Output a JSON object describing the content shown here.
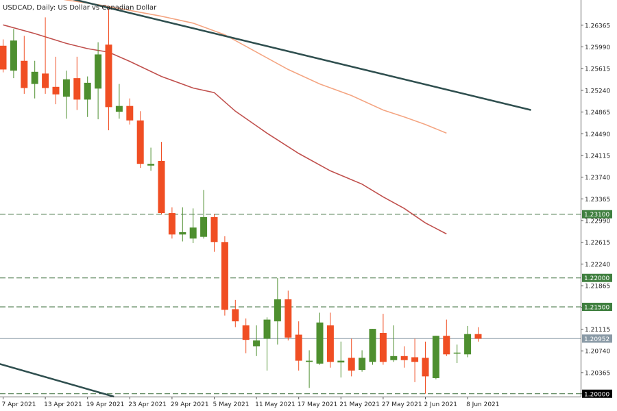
{
  "chart_data": {
    "type": "candlestick",
    "title": "USDCAD, Daily:  US Dollar vs Canadian Dollar",
    "ylim": [
      1.1995,
      1.268
    ],
    "y_ticks": [
      "1.26365",
      "1.25990",
      "1.25615",
      "1.25240",
      "1.24865",
      "1.24490",
      "1.24115",
      "1.23740",
      "1.23365",
      "1.22990",
      "1.22615",
      "1.22240",
      "1.21865",
      "1.21490",
      "1.21115",
      "1.20740",
      "1.20365",
      "1.20000"
    ],
    "x_labels": [
      "7 Apr 2021",
      "13 Apr 2021",
      "19 Apr 2021",
      "23 Apr 2021",
      "29 Apr 2021",
      "5 May 2021",
      "11 May 2021",
      "17 May 2021",
      "21 May 2021",
      "27 May 2021",
      "2 Jun 2021",
      "8 Jun 2021"
    ],
    "current_price": {
      "value": 1.20952,
      "label": "1.20952"
    },
    "horizontal_levels": [
      {
        "value": 1.231,
        "label": "1.23100"
      },
      {
        "value": 1.22,
        "label": "1.22000"
      },
      {
        "value": 1.215,
        "label": "1.21500"
      },
      {
        "value": 1.2,
        "label": "1.20000"
      }
    ],
    "candles": [
      {
        "o": 1.2601,
        "h": 1.2612,
        "l": 1.2555,
        "c": 1.256
      },
      {
        "o": 1.2558,
        "h": 1.263,
        "l": 1.2545,
        "c": 1.261
      },
      {
        "o": 1.2575,
        "h": 1.2618,
        "l": 1.2518,
        "c": 1.2528
      },
      {
        "o": 1.2535,
        "h": 1.2575,
        "l": 1.251,
        "c": 1.2556
      },
      {
        "o": 1.2553,
        "h": 1.265,
        "l": 1.2518,
        "c": 1.2528
      },
      {
        "o": 1.253,
        "h": 1.2582,
        "l": 1.25,
        "c": 1.2517
      },
      {
        "o": 1.2513,
        "h": 1.2558,
        "l": 1.2475,
        "c": 1.2543
      },
      {
        "o": 1.2545,
        "h": 1.2582,
        "l": 1.249,
        "c": 1.2508
      },
      {
        "o": 1.2508,
        "h": 1.2548,
        "l": 1.2478,
        "c": 1.2537
      },
      {
        "o": 1.2527,
        "h": 1.2607,
        "l": 1.2474,
        "c": 1.2586
      },
      {
        "o": 1.2603,
        "h": 1.2665,
        "l": 1.2455,
        "c": 1.2495
      },
      {
        "o": 1.2487,
        "h": 1.2535,
        "l": 1.2475,
        "c": 1.2497
      },
      {
        "o": 1.2497,
        "h": 1.251,
        "l": 1.2465,
        "c": 1.2472
      },
      {
        "o": 1.2472,
        "h": 1.2488,
        "l": 1.239,
        "c": 1.2397
      },
      {
        "o": 1.2394,
        "h": 1.2425,
        "l": 1.2385,
        "c": 1.2397
      },
      {
        "o": 1.2402,
        "h": 1.2435,
        "l": 1.231,
        "c": 1.2312
      },
      {
        "o": 1.2312,
        "h": 1.2322,
        "l": 1.2268,
        "c": 1.2275
      },
      {
        "o": 1.2275,
        "h": 1.2322,
        "l": 1.2263,
        "c": 1.2279
      },
      {
        "o": 1.2268,
        "h": 1.232,
        "l": 1.226,
        "c": 1.2287
      },
      {
        "o": 1.2271,
        "h": 1.2352,
        "l": 1.2268,
        "c": 1.2305
      },
      {
        "o": 1.2305,
        "h": 1.231,
        "l": 1.2245,
        "c": 1.2262
      },
      {
        "o": 1.2262,
        "h": 1.2272,
        "l": 1.2135,
        "c": 1.2145
      },
      {
        "o": 1.2146,
        "h": 1.2162,
        "l": 1.2115,
        "c": 1.2125
      },
      {
        "o": 1.2118,
        "h": 1.213,
        "l": 1.207,
        "c": 1.2093
      },
      {
        "o": 1.2082,
        "h": 1.2118,
        "l": 1.2065,
        "c": 1.2092
      },
      {
        "o": 1.2095,
        "h": 1.2132,
        "l": 1.204,
        "c": 1.2128
      },
      {
        "o": 1.2125,
        "h": 1.22,
        "l": 1.2085,
        "c": 1.2163
      },
      {
        "o": 1.2163,
        "h": 1.2178,
        "l": 1.2092,
        "c": 1.2097
      },
      {
        "o": 1.2102,
        "h": 1.2125,
        "l": 1.204,
        "c": 1.2057
      },
      {
        "o": 1.2055,
        "h": 1.2075,
        "l": 1.201,
        "c": 1.2057
      },
      {
        "o": 1.2052,
        "h": 1.214,
        "l": 1.205,
        "c": 1.2123
      },
      {
        "o": 1.2118,
        "h": 1.214,
        "l": 1.2045,
        "c": 1.2055
      },
      {
        "o": 1.2054,
        "h": 1.209,
        "l": 1.2028,
        "c": 1.2057
      },
      {
        "o": 1.2062,
        "h": 1.2095,
        "l": 1.203,
        "c": 1.204
      },
      {
        "o": 1.2041,
        "h": 1.2075,
        "l": 1.2038,
        "c": 1.2062
      },
      {
        "o": 1.2055,
        "h": 1.2112,
        "l": 1.205,
        "c": 1.2112
      },
      {
        "o": 1.2105,
        "h": 1.2138,
        "l": 1.205,
        "c": 1.2055
      },
      {
        "o": 1.2058,
        "h": 1.2118,
        "l": 1.2055,
        "c": 1.2065
      },
      {
        "o": 1.2065,
        "h": 1.2082,
        "l": 1.2045,
        "c": 1.2058
      },
      {
        "o": 1.2063,
        "h": 1.2095,
        "l": 1.202,
        "c": 1.2055
      },
      {
        "o": 1.2062,
        "h": 1.209,
        "l": 1.2,
        "c": 1.203
      },
      {
        "o": 1.2027,
        "h": 1.21,
        "l": 1.2025,
        "c": 1.21
      },
      {
        "o": 1.21,
        "h": 1.2128,
        "l": 1.2065,
        "c": 1.2068
      },
      {
        "o": 1.207,
        "h": 1.2085,
        "l": 1.2053,
        "c": 1.2071
      },
      {
        "o": 1.2068,
        "h": 1.2117,
        "l": 1.2063,
        "c": 1.2103
      },
      {
        "o": 1.2103,
        "h": 1.2115,
        "l": 1.209,
        "c": 1.2095
      }
    ],
    "moving_averages": [
      {
        "color": "#f4a582",
        "points": [
          [
            0,
            1.2705
          ],
          [
            3,
            1.269
          ],
          [
            6,
            1.268
          ],
          [
            9,
            1.2672
          ],
          [
            12,
            1.2662
          ],
          [
            15,
            1.2652
          ],
          [
            18,
            1.264
          ],
          [
            21,
            1.262
          ],
          [
            24,
            1.259
          ],
          [
            27,
            1.256
          ],
          [
            30,
            1.2535
          ],
          [
            33,
            1.2515
          ],
          [
            36,
            1.249
          ],
          [
            38,
            1.2478
          ],
          [
            40,
            1.2465
          ],
          [
            42,
            1.245
          ]
        ]
      },
      {
        "color": "#c0504d",
        "points": [
          [
            0,
            1.2637
          ],
          [
            3,
            1.2622
          ],
          [
            6,
            1.2605
          ],
          [
            8,
            1.2596
          ],
          [
            10,
            1.259
          ],
          [
            12,
            1.2574
          ],
          [
            15,
            1.2548
          ],
          [
            18,
            1.2528
          ],
          [
            20,
            1.252
          ],
          [
            22,
            1.2488
          ],
          [
            25,
            1.245
          ],
          [
            28,
            1.2415
          ],
          [
            31,
            1.2385
          ],
          [
            34,
            1.2362
          ],
          [
            36,
            1.234
          ],
          [
            38,
            1.232
          ],
          [
            40,
            1.2295
          ],
          [
            42,
            1.2276
          ]
        ]
      }
    ],
    "trendlines": [
      {
        "color": "#2f4f4f",
        "from": [
          -1.0,
          1.2715
        ],
        "to": [
          50.0,
          1.249
        ]
      },
      {
        "color": "#2f4f4f",
        "from": [
          -1.0,
          1.2055
        ],
        "to": [
          10.5,
          1.1995
        ]
      }
    ],
    "colors": {
      "bull": "#4e8f2f",
      "bear": "#f04e23",
      "level": "#3a6e3a",
      "badge": "#3f7f3f",
      "current": "#8a9aa6"
    }
  }
}
